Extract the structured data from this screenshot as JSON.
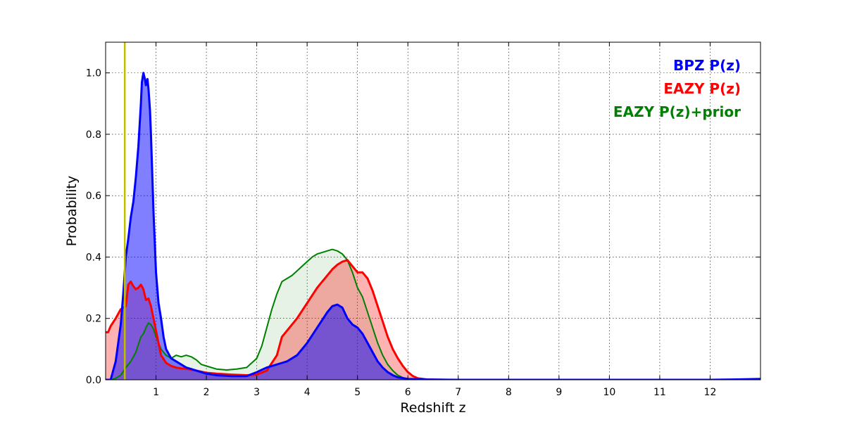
{
  "chart_data": {
    "type": "area",
    "xlabel": "Redshift z",
    "ylabel": "Probability",
    "xlim": [
      0,
      13
    ],
    "ylim": [
      0,
      1.1
    ],
    "xticks": [
      "1",
      "2",
      "3",
      "4",
      "5",
      "6",
      "7",
      "8",
      "9",
      "10",
      "11",
      "12"
    ],
    "yticks": [
      "0.0",
      "0.2",
      "0.4",
      "0.6",
      "0.8",
      "1.0"
    ],
    "grid": true,
    "legend_position": "top-right",
    "vertical_line": {
      "x": 0.38,
      "color": "#bfbf00"
    },
    "series": [
      {
        "name": "EAZY P(z)+prior",
        "color": "#008000",
        "fill": "#008000",
        "fill_opacity": 0.1,
        "x": [
          0,
          0.1,
          0.2,
          0.3,
          0.4,
          0.5,
          0.6,
          0.7,
          0.75,
          0.8,
          0.85,
          0.9,
          0.95,
          1.0,
          1.1,
          1.2,
          1.3,
          1.4,
          1.5,
          1.6,
          1.7,
          1.8,
          1.9,
          2.0,
          2.2,
          2.4,
          2.6,
          2.8,
          3.0,
          3.1,
          3.2,
          3.3,
          3.4,
          3.5,
          3.6,
          3.7,
          3.8,
          3.9,
          4.0,
          4.1,
          4.2,
          4.3,
          4.4,
          4.5,
          4.6,
          4.7,
          4.8,
          4.9,
          5.0,
          5.1,
          5.2,
          5.3,
          5.4,
          5.5,
          5.6,
          5.7,
          5.8,
          5.9,
          6.0,
          6.2,
          6.5,
          7.0,
          8,
          9,
          10,
          11,
          12,
          13
        ],
        "y": [
          0,
          0,
          0.005,
          0.015,
          0.04,
          0.06,
          0.09,
          0.14,
          0.15,
          0.17,
          0.185,
          0.18,
          0.165,
          0.14,
          0.1,
          0.08,
          0.07,
          0.08,
          0.075,
          0.08,
          0.075,
          0.065,
          0.05,
          0.045,
          0.035,
          0.032,
          0.035,
          0.04,
          0.07,
          0.11,
          0.17,
          0.23,
          0.28,
          0.32,
          0.33,
          0.34,
          0.355,
          0.37,
          0.385,
          0.4,
          0.41,
          0.415,
          0.42,
          0.425,
          0.42,
          0.41,
          0.39,
          0.35,
          0.3,
          0.27,
          0.22,
          0.17,
          0.12,
          0.08,
          0.05,
          0.03,
          0.015,
          0.007,
          0.003,
          0.001,
          0,
          0,
          0,
          0,
          0,
          0,
          0,
          0
        ]
      },
      {
        "name": "EAZY P(z)",
        "color": "#ff0000",
        "fill": "#ff0000",
        "fill_opacity": 0.3,
        "x": [
          0,
          0.05,
          0.1,
          0.2,
          0.3,
          0.35,
          0.4,
          0.45,
          0.5,
          0.55,
          0.6,
          0.65,
          0.7,
          0.75,
          0.8,
          0.85,
          0.9,
          0.95,
          1.0,
          1.05,
          1.1,
          1.2,
          1.3,
          1.4,
          1.5,
          1.6,
          1.7,
          1.8,
          2.0,
          2.2,
          2.5,
          2.8,
          3.0,
          3.2,
          3.4,
          3.5,
          3.6,
          3.8,
          4.0,
          4.2,
          4.4,
          4.5,
          4.6,
          4.7,
          4.8,
          4.9,
          5.0,
          5.1,
          5.2,
          5.3,
          5.4,
          5.5,
          5.6,
          5.7,
          5.8,
          5.9,
          6.0,
          6.1,
          6.2,
          6.4,
          6.7,
          7.0,
          8,
          9,
          10,
          11,
          12,
          13
        ],
        "y": [
          0.155,
          0.155,
          0.175,
          0.2,
          0.23,
          0.235,
          0.24,
          0.31,
          0.32,
          0.305,
          0.295,
          0.3,
          0.31,
          0.295,
          0.26,
          0.265,
          0.24,
          0.2,
          0.16,
          0.12,
          0.08,
          0.055,
          0.045,
          0.04,
          0.037,
          0.036,
          0.033,
          0.03,
          0.023,
          0.02,
          0.017,
          0.015,
          0.017,
          0.03,
          0.08,
          0.14,
          0.16,
          0.2,
          0.25,
          0.3,
          0.34,
          0.36,
          0.375,
          0.385,
          0.39,
          0.37,
          0.35,
          0.35,
          0.33,
          0.29,
          0.24,
          0.19,
          0.14,
          0.1,
          0.07,
          0.045,
          0.025,
          0.012,
          0.005,
          0.001,
          0,
          0,
          0,
          0,
          0,
          0,
          0,
          0
        ]
      },
      {
        "name": "BPZ P(z)",
        "color": "#0000ff",
        "fill": "#0000ff",
        "fill_opacity": 0.5,
        "x": [
          0,
          0.1,
          0.2,
          0.3,
          0.35,
          0.4,
          0.45,
          0.5,
          0.55,
          0.6,
          0.65,
          0.7,
          0.72,
          0.75,
          0.78,
          0.8,
          0.83,
          0.85,
          0.88,
          0.9,
          0.95,
          1.0,
          1.05,
          1.1,
          1.15,
          1.2,
          1.3,
          1.4,
          1.5,
          1.6,
          1.7,
          1.8,
          2.0,
          2.2,
          2.5,
          2.8,
          3.0,
          3.2,
          3.4,
          3.5,
          3.6,
          3.8,
          4.0,
          4.2,
          4.4,
          4.5,
          4.6,
          4.7,
          4.8,
          4.9,
          5.0,
          5.1,
          5.2,
          5.3,
          5.4,
          5.5,
          5.6,
          5.7,
          5.8,
          6.0,
          6.3,
          7,
          8,
          9,
          10,
          11,
          12,
          12.5,
          13
        ],
        "y": [
          0,
          0,
          0.06,
          0.18,
          0.28,
          0.4,
          0.46,
          0.53,
          0.58,
          0.66,
          0.76,
          0.9,
          0.97,
          1.0,
          0.98,
          0.96,
          0.98,
          0.95,
          0.88,
          0.8,
          0.55,
          0.35,
          0.25,
          0.2,
          0.14,
          0.1,
          0.07,
          0.06,
          0.05,
          0.04,
          0.035,
          0.03,
          0.02,
          0.015,
          0.012,
          0.012,
          0.025,
          0.04,
          0.05,
          0.055,
          0.06,
          0.08,
          0.12,
          0.17,
          0.22,
          0.24,
          0.245,
          0.235,
          0.2,
          0.18,
          0.17,
          0.15,
          0.12,
          0.09,
          0.06,
          0.04,
          0.025,
          0.015,
          0.008,
          0.003,
          0.001,
          0,
          0,
          0,
          0,
          0,
          0,
          0.001,
          0.003
        ]
      }
    ],
    "legend": [
      {
        "label": "BPZ P(z)",
        "color": "#0000ff"
      },
      {
        "label": "EAZY P(z)",
        "color": "#ff0000"
      },
      {
        "label": "EAZY P(z)+prior",
        "color": "#008000"
      }
    ]
  }
}
